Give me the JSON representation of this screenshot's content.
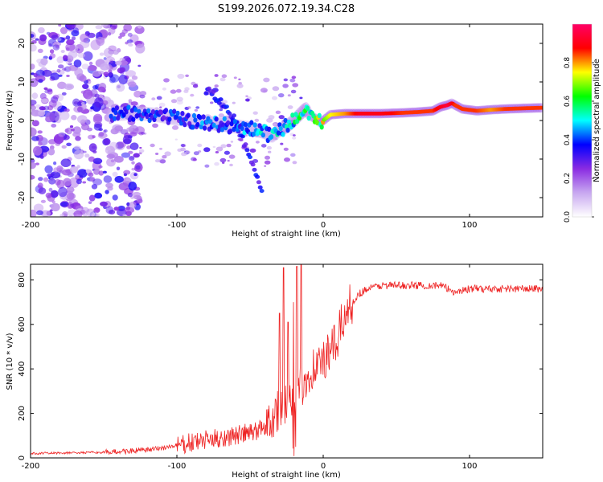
{
  "title": "S199.2026.072.19.34.C28",
  "chart_data": [
    {
      "type": "heatmap",
      "name": "spectrogram",
      "xlabel": "Height of straight line (km)",
      "ylabel": "Frequency (Hz)",
      "xlim": [
        -200,
        150
      ],
      "ylim": [
        -25,
        25
      ],
      "xticks": [
        -200,
        -100,
        0,
        100
      ],
      "yticks": [
        -20,
        -10,
        0,
        10,
        20
      ],
      "colorbar": {
        "label": "Normalized spectral amplitude",
        "range": [
          0.0,
          1.0
        ],
        "ticks": [
          0.0,
          0.2,
          0.4,
          0.6,
          0.8
        ],
        "colors": [
          "#ffffff",
          "#c8a8f0",
          "#8a2be2",
          "#0000ff",
          "#00ffff",
          "#00ff00",
          "#ffff00",
          "#ff0000",
          "#ff0066"
        ]
      },
      "ridge": {
        "x": [
          -145,
          -130,
          -115,
          -100,
          -90,
          -80,
          -70,
          -60,
          -50,
          -40,
          -35,
          -30,
          -25,
          -20,
          -15,
          -12,
          -8,
          -5,
          -2,
          0,
          5,
          15,
          25,
          40,
          55,
          65,
          75,
          80,
          85,
          88,
          90,
          95,
          105,
          115,
          125,
          140,
          150
        ],
        "y": [
          1.5,
          2.0,
          1.5,
          0.5,
          0.0,
          -0.5,
          -1.0,
          -1.5,
          -2.0,
          -3.0,
          -4.0,
          -2.5,
          -1.5,
          0.0,
          2.0,
          3.0,
          1.0,
          0.5,
          -0.5,
          0.0,
          1.5,
          1.8,
          1.8,
          1.8,
          2.0,
          2.2,
          2.5,
          3.5,
          4.0,
          4.5,
          4.0,
          3.0,
          2.5,
          2.8,
          3.0,
          3.2,
          3.3
        ],
        "amplitude": [
          0.35,
          0.35,
          0.35,
          0.35,
          0.35,
          0.4,
          0.4,
          0.4,
          0.4,
          0.45,
          0.45,
          0.45,
          0.5,
          0.5,
          0.55,
          0.6,
          0.55,
          0.6,
          0.65,
          0.65,
          0.75,
          0.8,
          0.9,
          0.9,
          0.85,
          0.85,
          0.85,
          0.9,
          0.95,
          0.9,
          0.85,
          0.85,
          0.85,
          0.8,
          0.85,
          0.85,
          0.85
        ]
      },
      "branch": {
        "x": [
          -80,
          -70,
          -60,
          -55,
          -50,
          -45,
          -42
        ],
        "y": [
          8,
          5,
          0,
          -5,
          -10,
          -15,
          -18
        ]
      }
    },
    {
      "type": "line",
      "name": "snr",
      "xlabel": "Height of straight line (km)",
      "ylabel": "SNR (10 * v/v)",
      "xlim": [
        -200,
        150
      ],
      "ylim": [
        0,
        870
      ],
      "xticks": [
        -200,
        -100,
        0,
        100
      ],
      "yticks": [
        0,
        200,
        400,
        600,
        800
      ],
      "color": "#ee2222",
      "series": [
        {
          "name": "SNR",
          "trend_x": [
            -200,
            -150,
            -120,
            -100,
            -80,
            -60,
            -45,
            -35,
            -30,
            -25,
            -20,
            -15,
            -10,
            -5,
            0,
            5,
            10,
            15,
            20,
            25,
            30,
            40,
            60,
            80,
            90,
            100,
            120,
            150
          ],
          "trend_y": [
            20,
            25,
            35,
            55,
            80,
            100,
            120,
            180,
            230,
            250,
            300,
            320,
            380,
            420,
            430,
            470,
            540,
            650,
            700,
            740,
            760,
            775,
            775,
            775,
            745,
            760,
            760,
            760
          ],
          "spikes_x": [
            -30,
            -27,
            -24,
            -20,
            -18,
            -15
          ],
          "spikes_y": [
            650,
            855,
            610,
            700,
            860,
            870
          ]
        }
      ]
    }
  ]
}
